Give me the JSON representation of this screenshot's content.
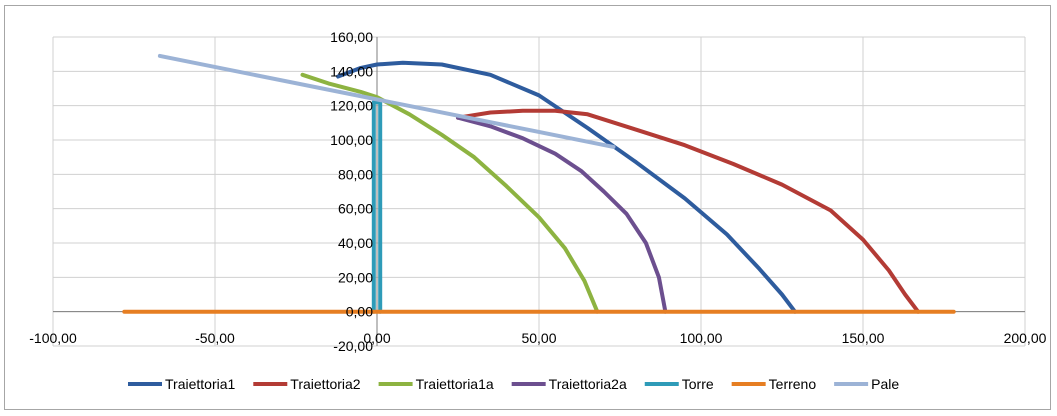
{
  "chart_data": {
    "type": "line",
    "title": "",
    "xlabel": "",
    "ylabel": "",
    "xlim": [
      -100,
      200
    ],
    "ylim": [
      -20,
      160
    ],
    "x_ticks": [
      -100,
      -50,
      0,
      50,
      100,
      150,
      200
    ],
    "x_tick_labels": [
      "-100,00",
      "-50,00",
      "0,00",
      "50,00",
      "100,00",
      "150,00",
      "200,00"
    ],
    "y_ticks": [
      -20,
      0,
      20,
      40,
      60,
      80,
      100,
      120,
      140,
      160
    ],
    "y_tick_labels": [
      "-20,00",
      "0,00",
      "20,00",
      "40,00",
      "60,00",
      "80,00",
      "100,00",
      "120,00",
      "140,00",
      "160,00"
    ],
    "grid": true,
    "legend_position": "bottom",
    "series": [
      {
        "name": "Traiettoria1",
        "color": "#2e5c9e",
        "points": [
          [
            -12,
            137
          ],
          [
            -5,
            142
          ],
          [
            0,
            144
          ],
          [
            8,
            145
          ],
          [
            20,
            144
          ],
          [
            35,
            138
          ],
          [
            50,
            126
          ],
          [
            65,
            107
          ],
          [
            80,
            87
          ],
          [
            95,
            66
          ],
          [
            108,
            45
          ],
          [
            118,
            25
          ],
          [
            125,
            10
          ],
          [
            129,
            0
          ]
        ]
      },
      {
        "name": "Traiettoria2",
        "color": "#b33b35",
        "points": [
          [
            25,
            113
          ],
          [
            35,
            116
          ],
          [
            45,
            117
          ],
          [
            55,
            117
          ],
          [
            65,
            115
          ],
          [
            80,
            106
          ],
          [
            95,
            97
          ],
          [
            110,
            86
          ],
          [
            125,
            74
          ],
          [
            140,
            59
          ],
          [
            150,
            42
          ],
          [
            158,
            24
          ],
          [
            163,
            10
          ],
          [
            167,
            0
          ]
        ]
      },
      {
        "name": "Traiettoria1a",
        "color": "#8db341",
        "points": [
          [
            -23,
            138
          ],
          [
            -15,
            133
          ],
          [
            -5,
            128
          ],
          [
            0,
            125
          ],
          [
            10,
            115
          ],
          [
            20,
            103
          ],
          [
            30,
            90
          ],
          [
            40,
            73
          ],
          [
            50,
            55
          ],
          [
            58,
            37
          ],
          [
            64,
            18
          ],
          [
            68,
            0
          ]
        ]
      },
      {
        "name": "Traiettoria2a",
        "color": "#6c4f8f",
        "points": [
          [
            25,
            113
          ],
          [
            35,
            108
          ],
          [
            45,
            101
          ],
          [
            55,
            92
          ],
          [
            63,
            82
          ],
          [
            70,
            70
          ],
          [
            77,
            57
          ],
          [
            83,
            40
          ],
          [
            87,
            20
          ],
          [
            89,
            0
          ]
        ]
      },
      {
        "name": "Torre",
        "color": "#2e9bb8",
        "points": [
          [
            -1,
            0
          ],
          [
            -1,
            122
          ],
          [
            1,
            122
          ],
          [
            1,
            0
          ]
        ]
      },
      {
        "name": "Terreno",
        "color": "#e67e22",
        "points": [
          [
            -78,
            0
          ],
          [
            178,
            0
          ]
        ]
      },
      {
        "name": "Pale",
        "color": "#9cb3d6",
        "points": [
          [
            -67,
            149
          ],
          [
            73,
            96
          ]
        ]
      }
    ]
  }
}
